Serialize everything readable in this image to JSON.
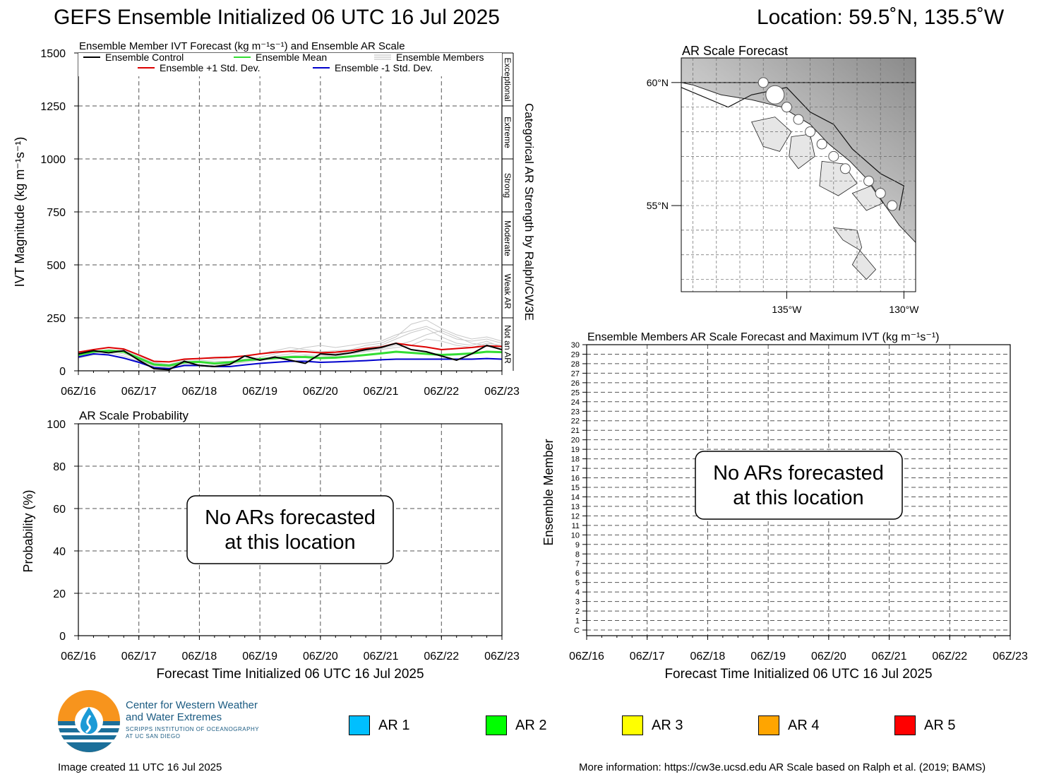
{
  "header": {
    "title": "GEFS Ensemble Initialized 06 UTC 16 Jul 2025",
    "location": "Location: 59.5˚N, 135.5˚W"
  },
  "footer": {
    "created": "Image created 11 UTC 16 Jul 2025",
    "info": "More information: https://cw3e.ucsd.edu AR Scale based on Ralph et al. (2019; BAMS)"
  },
  "logo": {
    "line1": "Center for Western Weather",
    "line2": "and Water Extremes",
    "line3": "SCRIPPS INSTITUTION OF OCEANOGRAPHY",
    "line4": "AT UC SAN DIEGO"
  },
  "ar_legend": [
    {
      "label": "AR 1",
      "color": "#00bfff"
    },
    {
      "label": "AR 2",
      "color": "#00ff00"
    },
    {
      "label": "AR 3",
      "color": "#ffff00"
    },
    {
      "label": "AR 4",
      "color": "#ffa500"
    },
    {
      "label": "AR 5",
      "color": "#ff0000"
    }
  ],
  "chart_data": [
    {
      "id": "ivt",
      "type": "line",
      "title": "Ensemble Member IVT Forecast (kg m⁻¹s⁻¹) and Ensemble AR Scale",
      "ylabel": "IVT Magnitude (kg m⁻¹s⁻¹)",
      "right_label": "Categorical AR Strength by Ralph/CW3E",
      "ylim": [
        0,
        1500
      ],
      "yticks": [
        "0",
        "250",
        "500",
        "750",
        "1000",
        "1250",
        "1500"
      ],
      "xlim_hours": [
        0,
        168
      ],
      "xticks": [
        "06Z/16",
        "06Z/17",
        "06Z/18",
        "06Z/19",
        "06Z/20",
        "06Z/21",
        "06Z/22",
        "06Z/23"
      ],
      "categories_right": [
        {
          "label": "Not an AR",
          "from": 0,
          "to": 250
        },
        {
          "label": "Weak AR",
          "from": 250,
          "to": 500
        },
        {
          "label": "Moderate",
          "from": 500,
          "to": 750
        },
        {
          "label": "Strong",
          "from": 750,
          "to": 1000
        },
        {
          "label": "Extreme",
          "from": 1000,
          "to": 1250
        },
        {
          "label": "Exceptional",
          "from": 1250,
          "to": 1500
        }
      ],
      "legend": [
        {
          "name": "Ensemble Control",
          "color": "#000000"
        },
        {
          "name": "Ensemble Mean",
          "color": "#33dd33"
        },
        {
          "name": "Ensemble Members",
          "color": "#bbbbbb"
        },
        {
          "name": "Ensemble +1 Std. Dev.",
          "color": "#dd0000"
        },
        {
          "name": "Ensemble -1 Std. Dev.",
          "color": "#0000cc"
        }
      ],
      "x_hours": [
        0,
        6,
        12,
        18,
        24,
        30,
        36,
        42,
        48,
        54,
        60,
        66,
        72,
        78,
        84,
        90,
        96,
        102,
        108,
        114,
        120,
        126,
        132,
        138,
        144,
        150,
        156,
        162,
        168
      ],
      "series": [
        {
          "name": "Ensemble +1 Std. Dev.",
          "color": "#dd0000",
          "values": [
            88,
            100,
            110,
            103,
            75,
            45,
            42,
            55,
            58,
            62,
            64,
            70,
            80,
            88,
            92,
            90,
            85,
            88,
            95,
            105,
            112,
            130,
            120,
            112,
            100,
            105,
            110,
            118,
            115
          ]
        },
        {
          "name": "Ensemble Mean",
          "color": "#33dd33",
          "values": [
            75,
            90,
            95,
            90,
            60,
            30,
            25,
            40,
            42,
            35,
            40,
            50,
            55,
            60,
            65,
            65,
            60,
            62,
            68,
            75,
            82,
            90,
            85,
            80,
            75,
            78,
            82,
            90,
            88
          ]
        },
        {
          "name": "Ensemble -1 Std. Dev.",
          "color": "#0000cc",
          "values": [
            65,
            80,
            75,
            60,
            40,
            15,
            10,
            25,
            25,
            20,
            20,
            28,
            35,
            40,
            45,
            45,
            40,
            42,
            45,
            48,
            52,
            55,
            55,
            55,
            55,
            55,
            55,
            58,
            55
          ]
        },
        {
          "name": "Ensemble Control",
          "color": "#000000",
          "values": [
            80,
            95,
            85,
            95,
            50,
            10,
            5,
            45,
            25,
            20,
            30,
            70,
            50,
            65,
            50,
            35,
            80,
            75,
            85,
            100,
            110,
            130,
            100,
            90,
            70,
            50,
            80,
            120,
            100
          ]
        }
      ],
      "members_note_values": [
        [
          70,
          85,
          90,
          80,
          55,
          20,
          15,
          35,
          40,
          30,
          35,
          45,
          55,
          70,
          80,
          90,
          85,
          80,
          95,
          110,
          120,
          150,
          180,
          200,
          160,
          130,
          120,
          140,
          110
        ],
        [
          90,
          100,
          110,
          100,
          70,
          40,
          30,
          50,
          60,
          55,
          60,
          70,
          80,
          95,
          110,
          100,
          90,
          95,
          100,
          120,
          130,
          160,
          220,
          240,
          200,
          170,
          150,
          160,
          140
        ],
        [
          60,
          75,
          85,
          70,
          45,
          15,
          10,
          30,
          30,
          25,
          30,
          40,
          50,
          55,
          60,
          70,
          65,
          70,
          80,
          90,
          100,
          110,
          120,
          150,
          140,
          120,
          110,
          130,
          120
        ],
        [
          80,
          90,
          100,
          95,
          65,
          35,
          28,
          45,
          50,
          45,
          45,
          55,
          65,
          80,
          95,
          110,
          120,
          110,
          120,
          130,
          140,
          170,
          190,
          210,
          180,
          150,
          140,
          150,
          130
        ],
        [
          70,
          85,
          95,
          90,
          55,
          25,
          18,
          40,
          45,
          35,
          38,
          50,
          58,
          65,
          70,
          75,
          72,
          75,
          85,
          95,
          105,
          120,
          140,
          170,
          190,
          160,
          130,
          120,
          100
        ]
      ]
    },
    {
      "id": "probability",
      "type": "line",
      "title": "AR Scale Probability",
      "ylabel": "Probability (%)",
      "xlabel": "Forecast Time Initialized 06 UTC 16 Jul 2025",
      "ylim": [
        0,
        100
      ],
      "yticks": [
        "0",
        "20",
        "40",
        "60",
        "80",
        "100"
      ],
      "xticks": [
        "06Z/16",
        "06Z/17",
        "06Z/18",
        "06Z/19",
        "06Z/20",
        "06Z/21",
        "06Z/22",
        "06Z/23"
      ],
      "annotation": [
        "No ARs forecasted",
        "at this location"
      ]
    },
    {
      "id": "members",
      "type": "heatmap",
      "title": "Ensemble Members AR Scale Forecast and Maximum IVT (kg m⁻¹s⁻¹)",
      "ylabel": "Ensemble Member",
      "xlabel": "Forecast Time Initialized 06 UTC 16 Jul 2025",
      "yticks": [
        "C",
        "1",
        "2",
        "3",
        "4",
        "5",
        "6",
        "7",
        "8",
        "9",
        "10",
        "11",
        "12",
        "13",
        "14",
        "15",
        "16",
        "17",
        "18",
        "19",
        "20",
        "21",
        "22",
        "23",
        "24",
        "25",
        "26",
        "27",
        "28",
        "29",
        "30"
      ],
      "xticks": [
        "06Z/16",
        "06Z/17",
        "06Z/18",
        "06Z/19",
        "06Z/20",
        "06Z/21",
        "06Z/22",
        "06Z/23"
      ],
      "annotation": [
        "No ARs forecasted",
        "at this location"
      ]
    }
  ],
  "map": {
    "title": "AR Scale Forecast",
    "lat_labels": [
      "60°N",
      "55°N"
    ],
    "lon_labels": [
      "135°W",
      "130°W"
    ],
    "lat_range": [
      51.5,
      61
    ],
    "lon_range": [
      -139.5,
      -129.5
    ],
    "points": [
      {
        "lat": 59.5,
        "lon": -135.5,
        "size": "large"
      },
      {
        "lat": 60.0,
        "lon": -136.0,
        "size": "small"
      },
      {
        "lat": 59.0,
        "lon": -135.0,
        "size": "small"
      },
      {
        "lat": 58.5,
        "lon": -134.5,
        "size": "small"
      },
      {
        "lat": 58.0,
        "lon": -134.0,
        "size": "small"
      },
      {
        "lat": 57.5,
        "lon": -133.5,
        "size": "small"
      },
      {
        "lat": 57.0,
        "lon": -133.0,
        "size": "small"
      },
      {
        "lat": 56.5,
        "lon": -132.5,
        "size": "small"
      },
      {
        "lat": 56.0,
        "lon": -131.5,
        "size": "small"
      },
      {
        "lat": 55.5,
        "lon": -131.0,
        "size": "small"
      },
      {
        "lat": 55.0,
        "lon": -130.5,
        "size": "small"
      }
    ]
  }
}
